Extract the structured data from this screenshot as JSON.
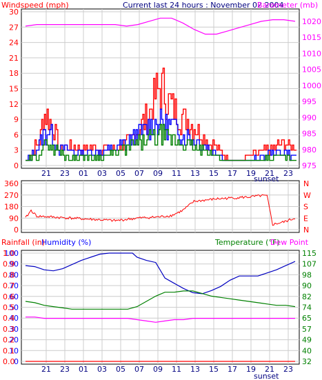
{
  "chart_data": [
    {
      "type": "line",
      "title": "Current last 24 hours : November 02 2004",
      "left_axis_label": "Windspeed (mph)",
      "right_axis_label": "Barometer (mb)",
      "left_ticks": [
        "0",
        "3",
        "6",
        "9",
        "12",
        "15",
        "18",
        "21",
        "24",
        "27",
        "30"
      ],
      "right_ticks": [
        "975",
        "980",
        "985",
        "990",
        "995",
        "1000",
        "1005",
        "1010",
        "1015",
        "1020"
      ],
      "hour_ticks": [
        "21",
        "23",
        "01",
        "03",
        "05",
        "07",
        "09",
        "11",
        "13",
        "15",
        "17",
        "19",
        "21",
        "23"
      ],
      "sunset_label": "sunset",
      "ylim": [
        0,
        30
      ],
      "barometer_lim": [
        975,
        1023
      ],
      "barometer": [
        [
          0,
          1018.5
        ],
        [
          1,
          1019
        ],
        [
          2,
          1019
        ],
        [
          3,
          1019
        ],
        [
          4,
          1019
        ],
        [
          5,
          1019
        ],
        [
          6,
          1019
        ],
        [
          7,
          1019
        ],
        [
          8,
          1019
        ],
        [
          9,
          1018.5
        ],
        [
          10,
          1019
        ],
        [
          11,
          1020
        ],
        [
          12,
          1021
        ],
        [
          13,
          1021
        ],
        [
          14,
          1019.5
        ],
        [
          15,
          1017.5
        ],
        [
          16,
          1016
        ],
        [
          17,
          1016
        ],
        [
          18,
          1017
        ],
        [
          19,
          1018
        ],
        [
          20,
          1019
        ],
        [
          21,
          1020
        ],
        [
          22,
          1020.5
        ],
        [
          23,
          1020.5
        ],
        [
          24,
          1020
        ]
      ],
      "gust_envelope": [
        [
          0,
          1
        ],
        [
          0.5,
          3
        ],
        [
          1,
          5
        ],
        [
          1.3,
          6
        ],
        [
          1.5,
          11
        ],
        [
          1.8,
          12
        ],
        [
          2.2,
          10
        ],
        [
          2.5,
          8
        ],
        [
          2.8,
          6
        ],
        [
          3,
          4
        ],
        [
          4,
          4
        ],
        [
          5,
          4
        ],
        [
          6,
          4
        ],
        [
          7,
          4
        ],
        [
          8,
          4
        ],
        [
          9,
          5
        ],
        [
          10,
          8
        ],
        [
          11,
          12
        ],
        [
          11.5,
          16
        ],
        [
          12,
          18
        ],
        [
          12.5,
          16
        ],
        [
          13,
          13
        ],
        [
          14,
          11
        ],
        [
          15,
          9
        ],
        [
          16,
          6
        ],
        [
          17,
          4
        ],
        [
          18,
          2
        ],
        [
          19,
          1
        ],
        [
          20,
          2
        ],
        [
          21,
          3
        ],
        [
          22,
          4
        ],
        [
          23,
          5
        ],
        [
          24,
          4
        ]
      ],
      "max_wind_envelope": [
        [
          0,
          1
        ],
        [
          0.5,
          2
        ],
        [
          1,
          4
        ],
        [
          1.5,
          7
        ],
        [
          2,
          8
        ],
        [
          2.5,
          6
        ],
        [
          3,
          4
        ],
        [
          4,
          3
        ],
        [
          5,
          3
        ],
        [
          6,
          3
        ],
        [
          7,
          3
        ],
        [
          8,
          4
        ],
        [
          9,
          5
        ],
        [
          10,
          7
        ],
        [
          11,
          9
        ],
        [
          12,
          10
        ],
        [
          13,
          9
        ],
        [
          14,
          7
        ],
        [
          15,
          6
        ],
        [
          16,
          4
        ],
        [
          17,
          3
        ],
        [
          18,
          1
        ],
        [
          19,
          1
        ],
        [
          20,
          1
        ],
        [
          21,
          2
        ],
        [
          22,
          3
        ],
        [
          23,
          3
        ],
        [
          24,
          2
        ]
      ],
      "avg_wind_envelope": [
        [
          0,
          1
        ],
        [
          1,
          2
        ],
        [
          1.5,
          4
        ],
        [
          2,
          5
        ],
        [
          2.5,
          4
        ],
        [
          3,
          3
        ],
        [
          4,
          2
        ],
        [
          5,
          2
        ],
        [
          6,
          2
        ],
        [
          7,
          2
        ],
        [
          8,
          3
        ],
        [
          9,
          4
        ],
        [
          10,
          5
        ],
        [
          11,
          6
        ],
        [
          12,
          7
        ],
        [
          13,
          6
        ],
        [
          14,
          5
        ],
        [
          15,
          4
        ],
        [
          16,
          3
        ],
        [
          17,
          2
        ],
        [
          18,
          1
        ],
        [
          19,
          1
        ],
        [
          20,
          1
        ],
        [
          21,
          1
        ],
        [
          22,
          2
        ],
        [
          23,
          2
        ],
        [
          24,
          1
        ]
      ]
    },
    {
      "type": "line",
      "left_ticks": [
        "0",
        "90",
        "180",
        "270",
        "360"
      ],
      "right_ticks": [
        "N",
        "E",
        "S",
        "W",
        "N"
      ],
      "ylim": [
        0,
        360
      ],
      "direction": [
        [
          0,
          90
        ],
        [
          0.5,
          150
        ],
        [
          1,
          105
        ],
        [
          2,
          100
        ],
        [
          3,
          95
        ],
        [
          4,
          90
        ],
        [
          5,
          85
        ],
        [
          6,
          80
        ],
        [
          7,
          75
        ],
        [
          8,
          70
        ],
        [
          9,
          80
        ],
        [
          10,
          90
        ],
        [
          11,
          95
        ],
        [
          12,
          100
        ],
        [
          13,
          110
        ],
        [
          14,
          150
        ],
        [
          15,
          220
        ],
        [
          16,
          230
        ],
        [
          17,
          240
        ],
        [
          18,
          245
        ],
        [
          19,
          250
        ],
        [
          20,
          255
        ],
        [
          21,
          265
        ],
        [
          21.5,
          262
        ],
        [
          22,
          40
        ],
        [
          23,
          60
        ],
        [
          24,
          90
        ]
      ]
    },
    {
      "type": "line",
      "labels": {
        "rainfall": "Rainfall (in)",
        "humidity": "Humidity (%)",
        "temperature": "Temperature (°F)",
        "dew_point": "Dew Point"
      },
      "rain_ticks": [
        "0.0",
        "0.1",
        "0.2",
        "0.3",
        "0.4",
        "0.5",
        "0.6",
        "0.7",
        "0.8",
        "0.9",
        "1.0"
      ],
      "humidity_ticks": [
        "0",
        "10",
        "20",
        "30",
        "40",
        "50",
        "60",
        "70",
        "80",
        "90",
        "100"
      ],
      "temp_ticks": [
        "32",
        "40",
        "49",
        "57",
        "65",
        "74",
        "82",
        "90",
        "98",
        "107",
        "115"
      ],
      "hour_ticks": [
        "21",
        "23",
        "01",
        "03",
        "05",
        "07",
        "09",
        "11",
        "13",
        "15",
        "17",
        "19",
        "21",
        "23"
      ],
      "sunset_label": "sunset",
      "humidity_lim": [
        0,
        100
      ],
      "temp_lim": [
        32,
        115
      ],
      "humidity": [
        [
          0,
          92
        ],
        [
          1,
          91
        ],
        [
          2,
          88
        ],
        [
          3,
          87
        ],
        [
          4,
          89
        ],
        [
          5,
          93
        ],
        [
          6,
          97
        ],
        [
          7,
          100
        ],
        [
          8,
          103
        ],
        [
          9,
          104
        ],
        [
          10,
          104
        ],
        [
          11,
          104
        ],
        [
          11.5,
          104
        ],
        [
          12,
          100
        ],
        [
          13,
          97
        ],
        [
          14,
          95
        ],
        [
          15,
          80
        ],
        [
          16,
          75
        ],
        [
          17,
          70
        ],
        [
          18,
          66
        ],
        [
          19,
          65
        ],
        [
          20,
          68
        ],
        [
          21,
          72
        ],
        [
          22,
          78
        ],
        [
          23,
          82
        ],
        [
          24,
          82
        ],
        [
          25,
          82
        ],
        [
          26,
          85
        ],
        [
          27,
          88
        ],
        [
          28,
          92
        ],
        [
          29,
          96
        ]
      ],
      "temperature": [
        [
          0,
          78
        ],
        [
          1,
          77
        ],
        [
          2,
          75
        ],
        [
          3,
          74
        ],
        [
          4,
          73
        ],
        [
          5,
          72
        ],
        [
          6,
          72
        ],
        [
          7,
          72
        ],
        [
          8,
          72
        ],
        [
          9,
          72
        ],
        [
          10,
          72
        ],
        [
          11,
          72
        ],
        [
          12,
          74
        ],
        [
          13,
          78
        ],
        [
          14,
          82
        ],
        [
          15,
          85
        ],
        [
          16,
          85
        ],
        [
          17,
          86
        ],
        [
          18,
          86
        ],
        [
          19,
          84
        ],
        [
          20,
          82
        ],
        [
          21,
          81
        ],
        [
          22,
          80
        ],
        [
          23,
          79
        ],
        [
          24,
          78
        ],
        [
          25,
          77
        ],
        [
          26,
          76
        ],
        [
          27,
          75
        ],
        [
          28,
          75
        ],
        [
          29,
          74
        ]
      ],
      "dew_point": [
        [
          0,
          66
        ],
        [
          1,
          66
        ],
        [
          2,
          65
        ],
        [
          3,
          65
        ],
        [
          4,
          65
        ],
        [
          5,
          65
        ],
        [
          6,
          65
        ],
        [
          7,
          65
        ],
        [
          8,
          65
        ],
        [
          9,
          65
        ],
        [
          10,
          65
        ],
        [
          11,
          65
        ],
        [
          12,
          64
        ],
        [
          13,
          63
        ],
        [
          14,
          62
        ],
        [
          15,
          63
        ],
        [
          16,
          64
        ],
        [
          17,
          64
        ],
        [
          18,
          65
        ],
        [
          19,
          65
        ],
        [
          20,
          65
        ],
        [
          21,
          65
        ],
        [
          22,
          65
        ],
        [
          23,
          65
        ],
        [
          24,
          65
        ],
        [
          25,
          65
        ],
        [
          26,
          65
        ],
        [
          27,
          65
        ],
        [
          28,
          65
        ],
        [
          29,
          65
        ]
      ],
      "rain": [
        [
          0,
          0
        ],
        [
          29,
          0
        ]
      ]
    }
  ],
  "colors": {
    "gust": "#ff0000",
    "max": "#0000ff",
    "avg": "#008000",
    "barometer": "#ff00ff",
    "direction": "#ff0000",
    "humidity": "#0000c0",
    "temperature": "#008000",
    "dew_point": "#ff00ff",
    "rain": "#ff0000",
    "grid": "#cccccc",
    "frame": "#000000",
    "title": "#000080"
  }
}
